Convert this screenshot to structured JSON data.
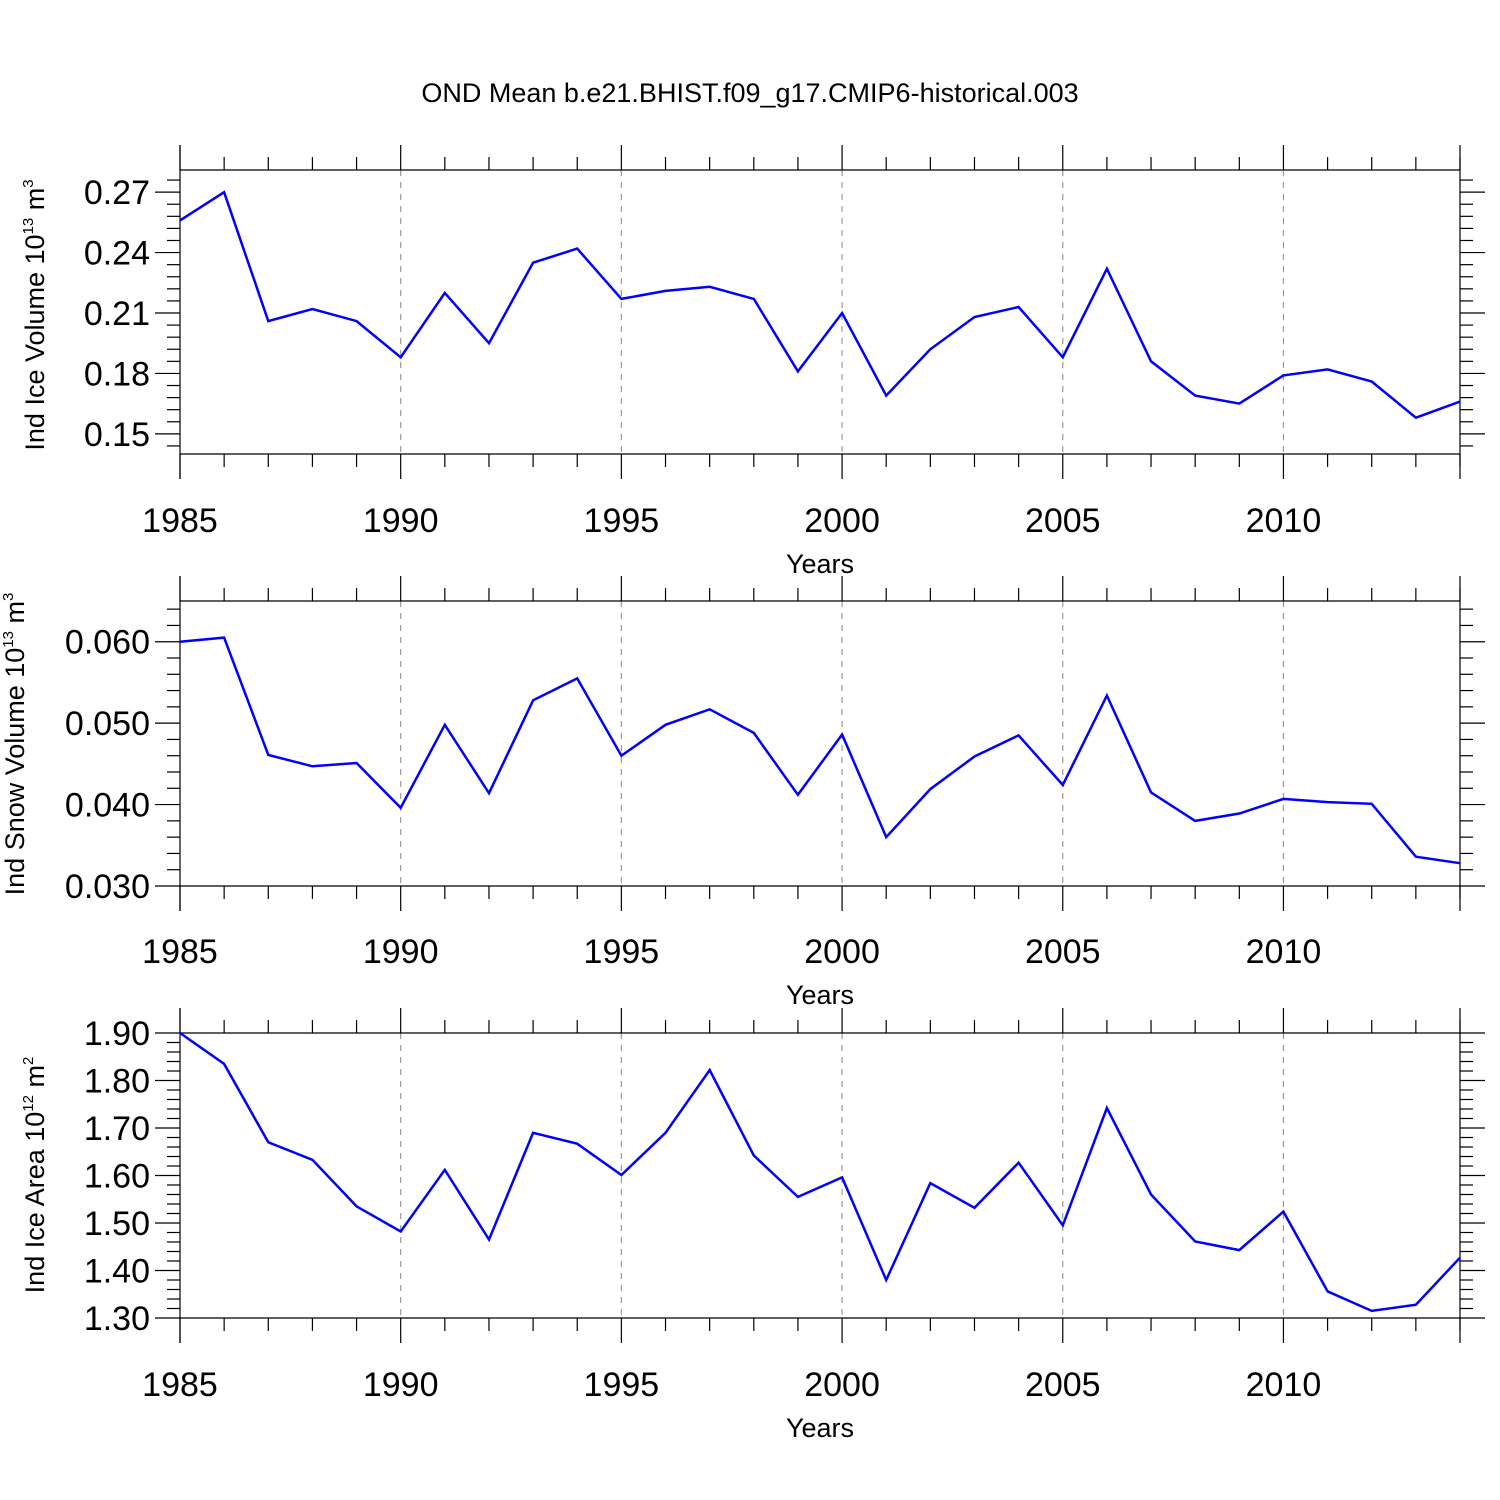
{
  "title": "OND Mean b.e21.BHIST.f09_g17.CMIP6-historical.003",
  "line_color": "#0000ff",
  "chart_data": [
    {
      "type": "line",
      "ylabel": "Ind Ice Volume 10^13 m^3",
      "ylabel_parts": {
        "main": "Ind Ice Volume 10",
        "exp1": "13",
        "mid": " m",
        "exp2": "3"
      },
      "xlabel": "Years",
      "xlim": [
        1985,
        2014
      ],
      "ylim": [
        0.14,
        0.281
      ],
      "x_ticks": [
        1985,
        1990,
        1995,
        2000,
        2005,
        2010
      ],
      "x_tick_labels": [
        "1985",
        "1990",
        "1995",
        "2000",
        "2005",
        "2010"
      ],
      "y_ticks": [
        0.15,
        0.18,
        0.21,
        0.24,
        0.27
      ],
      "y_tick_labels": [
        "0.15",
        "0.18",
        "0.21",
        "0.24",
        "0.27"
      ],
      "grid": "vertical dashed at major x ticks",
      "series": [
        {
          "x": [
            1985,
            1986,
            1987,
            1988,
            1989,
            1990,
            1991,
            1992,
            1993,
            1994,
            1995,
            1996,
            1997,
            1998,
            1999,
            2000,
            2001,
            2002,
            2003,
            2004,
            2005,
            2006,
            2007,
            2008,
            2009,
            2010,
            2011,
            2012,
            2013,
            2014
          ],
          "values": [
            0.256,
            0.27,
            0.206,
            0.212,
            0.206,
            0.188,
            0.22,
            0.195,
            0.235,
            0.242,
            0.217,
            0.221,
            0.223,
            0.217,
            0.181,
            0.21,
            0.169,
            0.192,
            0.208,
            0.213,
            0.188,
            0.232,
            0.186,
            0.169,
            0.165,
            0.179,
            0.182,
            0.176,
            0.158,
            0.166
          ]
        }
      ]
    },
    {
      "type": "line",
      "ylabel": "Ind Snow Volume 10^13 m^3",
      "ylabel_parts": {
        "main": "Ind Snow Volume 10",
        "exp1": "13",
        "mid": " m",
        "exp2": "3"
      },
      "xlabel": "Years",
      "xlim": [
        1985,
        2014
      ],
      "ylim": [
        0.03,
        0.065
      ],
      "x_ticks": [
        1985,
        1990,
        1995,
        2000,
        2005,
        2010
      ],
      "x_tick_labels": [
        "1985",
        "1990",
        "1995",
        "2000",
        "2005",
        "2010"
      ],
      "y_ticks": [
        0.03,
        0.04,
        0.05,
        0.06
      ],
      "y_tick_labels": [
        "0.030",
        "0.040",
        "0.050",
        "0.060"
      ],
      "grid": "vertical dashed at major x ticks",
      "series": [
        {
          "x": [
            1985,
            1986,
            1987,
            1988,
            1989,
            1990,
            1991,
            1992,
            1993,
            1994,
            1995,
            1996,
            1997,
            1998,
            1999,
            2000,
            2001,
            2002,
            2003,
            2004,
            2005,
            2006,
            2007,
            2008,
            2009,
            2010,
            2011,
            2012,
            2013,
            2014
          ],
          "values": [
            0.06,
            0.0605,
            0.0461,
            0.0447,
            0.0451,
            0.0396,
            0.0498,
            0.0414,
            0.0528,
            0.0555,
            0.046,
            0.0498,
            0.0517,
            0.0488,
            0.0412,
            0.0486,
            0.036,
            0.0419,
            0.0459,
            0.0485,
            0.0424,
            0.0534,
            0.0415,
            0.038,
            0.0389,
            0.0407,
            0.0403,
            0.0401,
            0.0336,
            0.0328
          ]
        }
      ]
    },
    {
      "type": "line",
      "ylabel": "Ind Ice Area 10^12 m^2",
      "ylabel_parts": {
        "main": "Ind Ice Area 10",
        "exp1": "12",
        "mid": " m",
        "exp2": "2"
      },
      "xlabel": "Years",
      "xlim": [
        1985,
        2014
      ],
      "ylim": [
        1.3,
        1.9
      ],
      "x_ticks": [
        1985,
        1990,
        1995,
        2000,
        2005,
        2010
      ],
      "x_tick_labels": [
        "1985",
        "1990",
        "1995",
        "2000",
        "2005",
        "2010"
      ],
      "y_ticks": [
        1.3,
        1.4,
        1.5,
        1.6,
        1.7,
        1.8,
        1.9
      ],
      "y_tick_labels": [
        "1.30",
        "1.40",
        "1.50",
        "1.60",
        "1.70",
        "1.80",
        "1.90"
      ],
      "grid": "vertical dashed at major x ticks",
      "series": [
        {
          "x": [
            1985,
            1986,
            1987,
            1988,
            1989,
            1990,
            1991,
            1992,
            1993,
            1994,
            1995,
            1996,
            1997,
            1998,
            1999,
            2000,
            2001,
            2002,
            2003,
            2004,
            2005,
            2006,
            2007,
            2008,
            2009,
            2010,
            2011,
            2012,
            2013,
            2014
          ],
          "values": [
            1.9,
            1.835,
            1.67,
            1.633,
            1.535,
            1.482,
            1.612,
            1.465,
            1.69,
            1.667,
            1.601,
            1.69,
            1.822,
            1.642,
            1.555,
            1.596,
            1.38,
            1.584,
            1.532,
            1.627,
            1.495,
            1.742,
            1.56,
            1.461,
            1.443,
            1.524,
            1.356,
            1.315,
            1.328,
            1.427
          ]
        }
      ]
    }
  ]
}
